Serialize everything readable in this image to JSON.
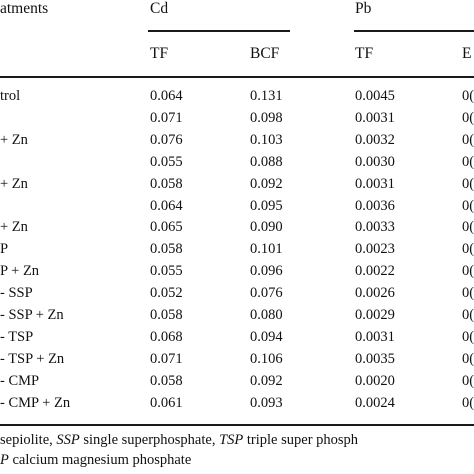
{
  "table": {
    "header": {
      "treatments": "atments",
      "group_cd": "Cd",
      "group_pb": "Pb",
      "sub": [
        "TF",
        "BCF",
        "TF",
        "E"
      ]
    },
    "rows": [
      {
        "label": "trol",
        "cd_tf": "0.064",
        "cd_bcf": "0.131",
        "pb_tf": "0.0045",
        "pb_tail": "0("
      },
      {
        "label": "",
        "cd_tf": "0.071",
        "cd_bcf": "0.098",
        "pb_tf": "0.0031",
        "pb_tail": "0("
      },
      {
        "label": "+ Zn",
        "cd_tf": "0.076",
        "cd_bcf": "0.103",
        "pb_tf": "0.0032",
        "pb_tail": "0("
      },
      {
        "label": "",
        "cd_tf": "0.055",
        "cd_bcf": "0.088",
        "pb_tf": "0.0030",
        "pb_tail": "0("
      },
      {
        "label": "+ Zn",
        "cd_tf": "0.058",
        "cd_bcf": "0.092",
        "pb_tf": "0.0031",
        "pb_tail": "0("
      },
      {
        "label": "",
        "cd_tf": "0.064",
        "cd_bcf": "0.095",
        "pb_tf": "0.0036",
        "pb_tail": "0("
      },
      {
        "label": "+ Zn",
        "cd_tf": "0.065",
        "cd_bcf": "0.090",
        "pb_tf": "0.0033",
        "pb_tail": "0("
      },
      {
        "label": "P",
        "cd_tf": "0.058",
        "cd_bcf": "0.101",
        "pb_tf": "0.0023",
        "pb_tail": "0("
      },
      {
        "label": "P + Zn",
        "cd_tf": "0.055",
        "cd_bcf": "0.096",
        "pb_tf": "0.0022",
        "pb_tail": "0("
      },
      {
        "label": "- SSP",
        "cd_tf": "0.052",
        "cd_bcf": "0.076",
        "pb_tf": "0.0026",
        "pb_tail": "0("
      },
      {
        "label": "- SSP + Zn",
        "cd_tf": "0.058",
        "cd_bcf": "0.080",
        "pb_tf": "0.0029",
        "pb_tail": "0("
      },
      {
        "label": "- TSP",
        "cd_tf": "0.068",
        "cd_bcf": "0.094",
        "pb_tf": "0.0031",
        "pb_tail": "0("
      },
      {
        "label": "- TSP + Zn",
        "cd_tf": "0.071",
        "cd_bcf": "0.106",
        "pb_tf": "0.0035",
        "pb_tail": "0("
      },
      {
        "label": "- CMP",
        "cd_tf": "0.058",
        "cd_bcf": "0.092",
        "pb_tf": "0.0020",
        "pb_tail": "0("
      },
      {
        "label": "- CMP + Zn",
        "cd_tf": "0.061",
        "cd_bcf": "0.093",
        "pb_tf": "0.0024",
        "pb_tail": "0("
      }
    ]
  },
  "footnote": {
    "l1_a": "sepiolite, ",
    "l1_ssp": "SSP",
    "l1_b": " single superphosphate, ",
    "l1_tsp": "TSP",
    "l1_c": " triple super phosph",
    "l2_p": "P",
    "l2_a": " calcium magnesium phosphate"
  }
}
